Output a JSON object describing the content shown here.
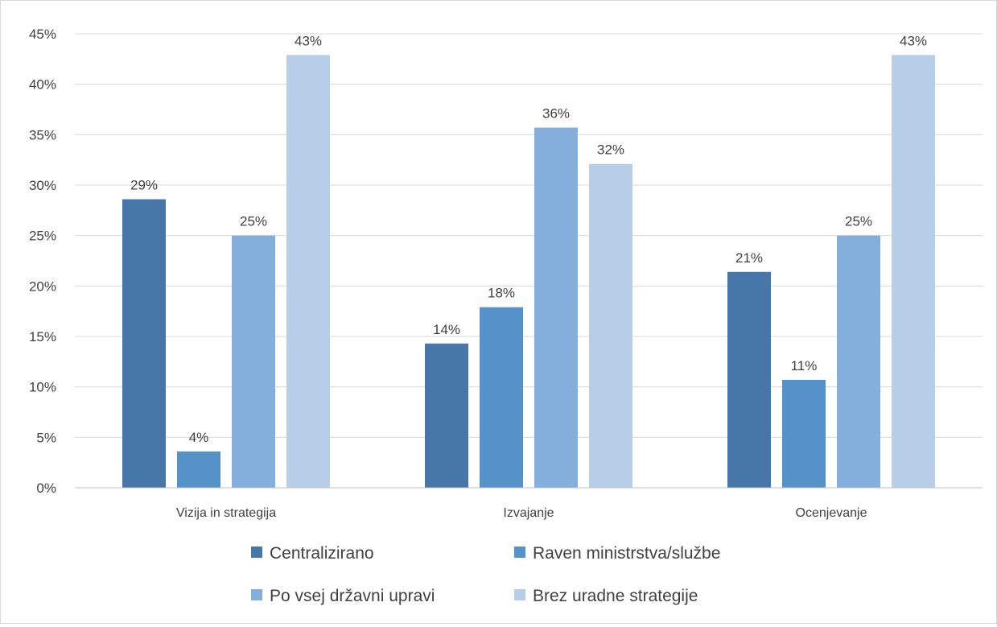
{
  "chart_data": {
    "type": "bar",
    "categories": [
      "Vizija in strategija",
      "Izvajanje",
      "Ocenjevanje"
    ],
    "series": [
      {
        "name": "Centralizirano",
        "color": "#4677a8",
        "values": [
          28.6,
          14.3,
          21.4
        ],
        "labels": [
          "29%",
          "14%",
          "21%"
        ]
      },
      {
        "name": "Raven ministrstva/službe",
        "color": "#5592c8",
        "values": [
          3.6,
          17.9,
          10.7
        ],
        "labels": [
          "4%",
          "18%",
          "11%"
        ]
      },
      {
        "name": "Po vsej državni upravi",
        "color": "#84aedb",
        "values": [
          25.0,
          35.7,
          25.0
        ],
        "labels": [
          "25%",
          "36%",
          "25%"
        ]
      },
      {
        "name": "Brez uradne strategije",
        "color": "#b8cde8",
        "values": [
          42.9,
          32.1,
          42.9
        ],
        "labels": [
          "43%",
          "32%",
          "43%"
        ]
      }
    ],
    "y_ticks": [
      "0%",
      "5%",
      "10%",
      "15%",
      "20%",
      "25%",
      "30%",
      "35%",
      "40%",
      "45%"
    ],
    "ylim": [
      0,
      45
    ],
    "grid": true,
    "legend": "bottom"
  }
}
